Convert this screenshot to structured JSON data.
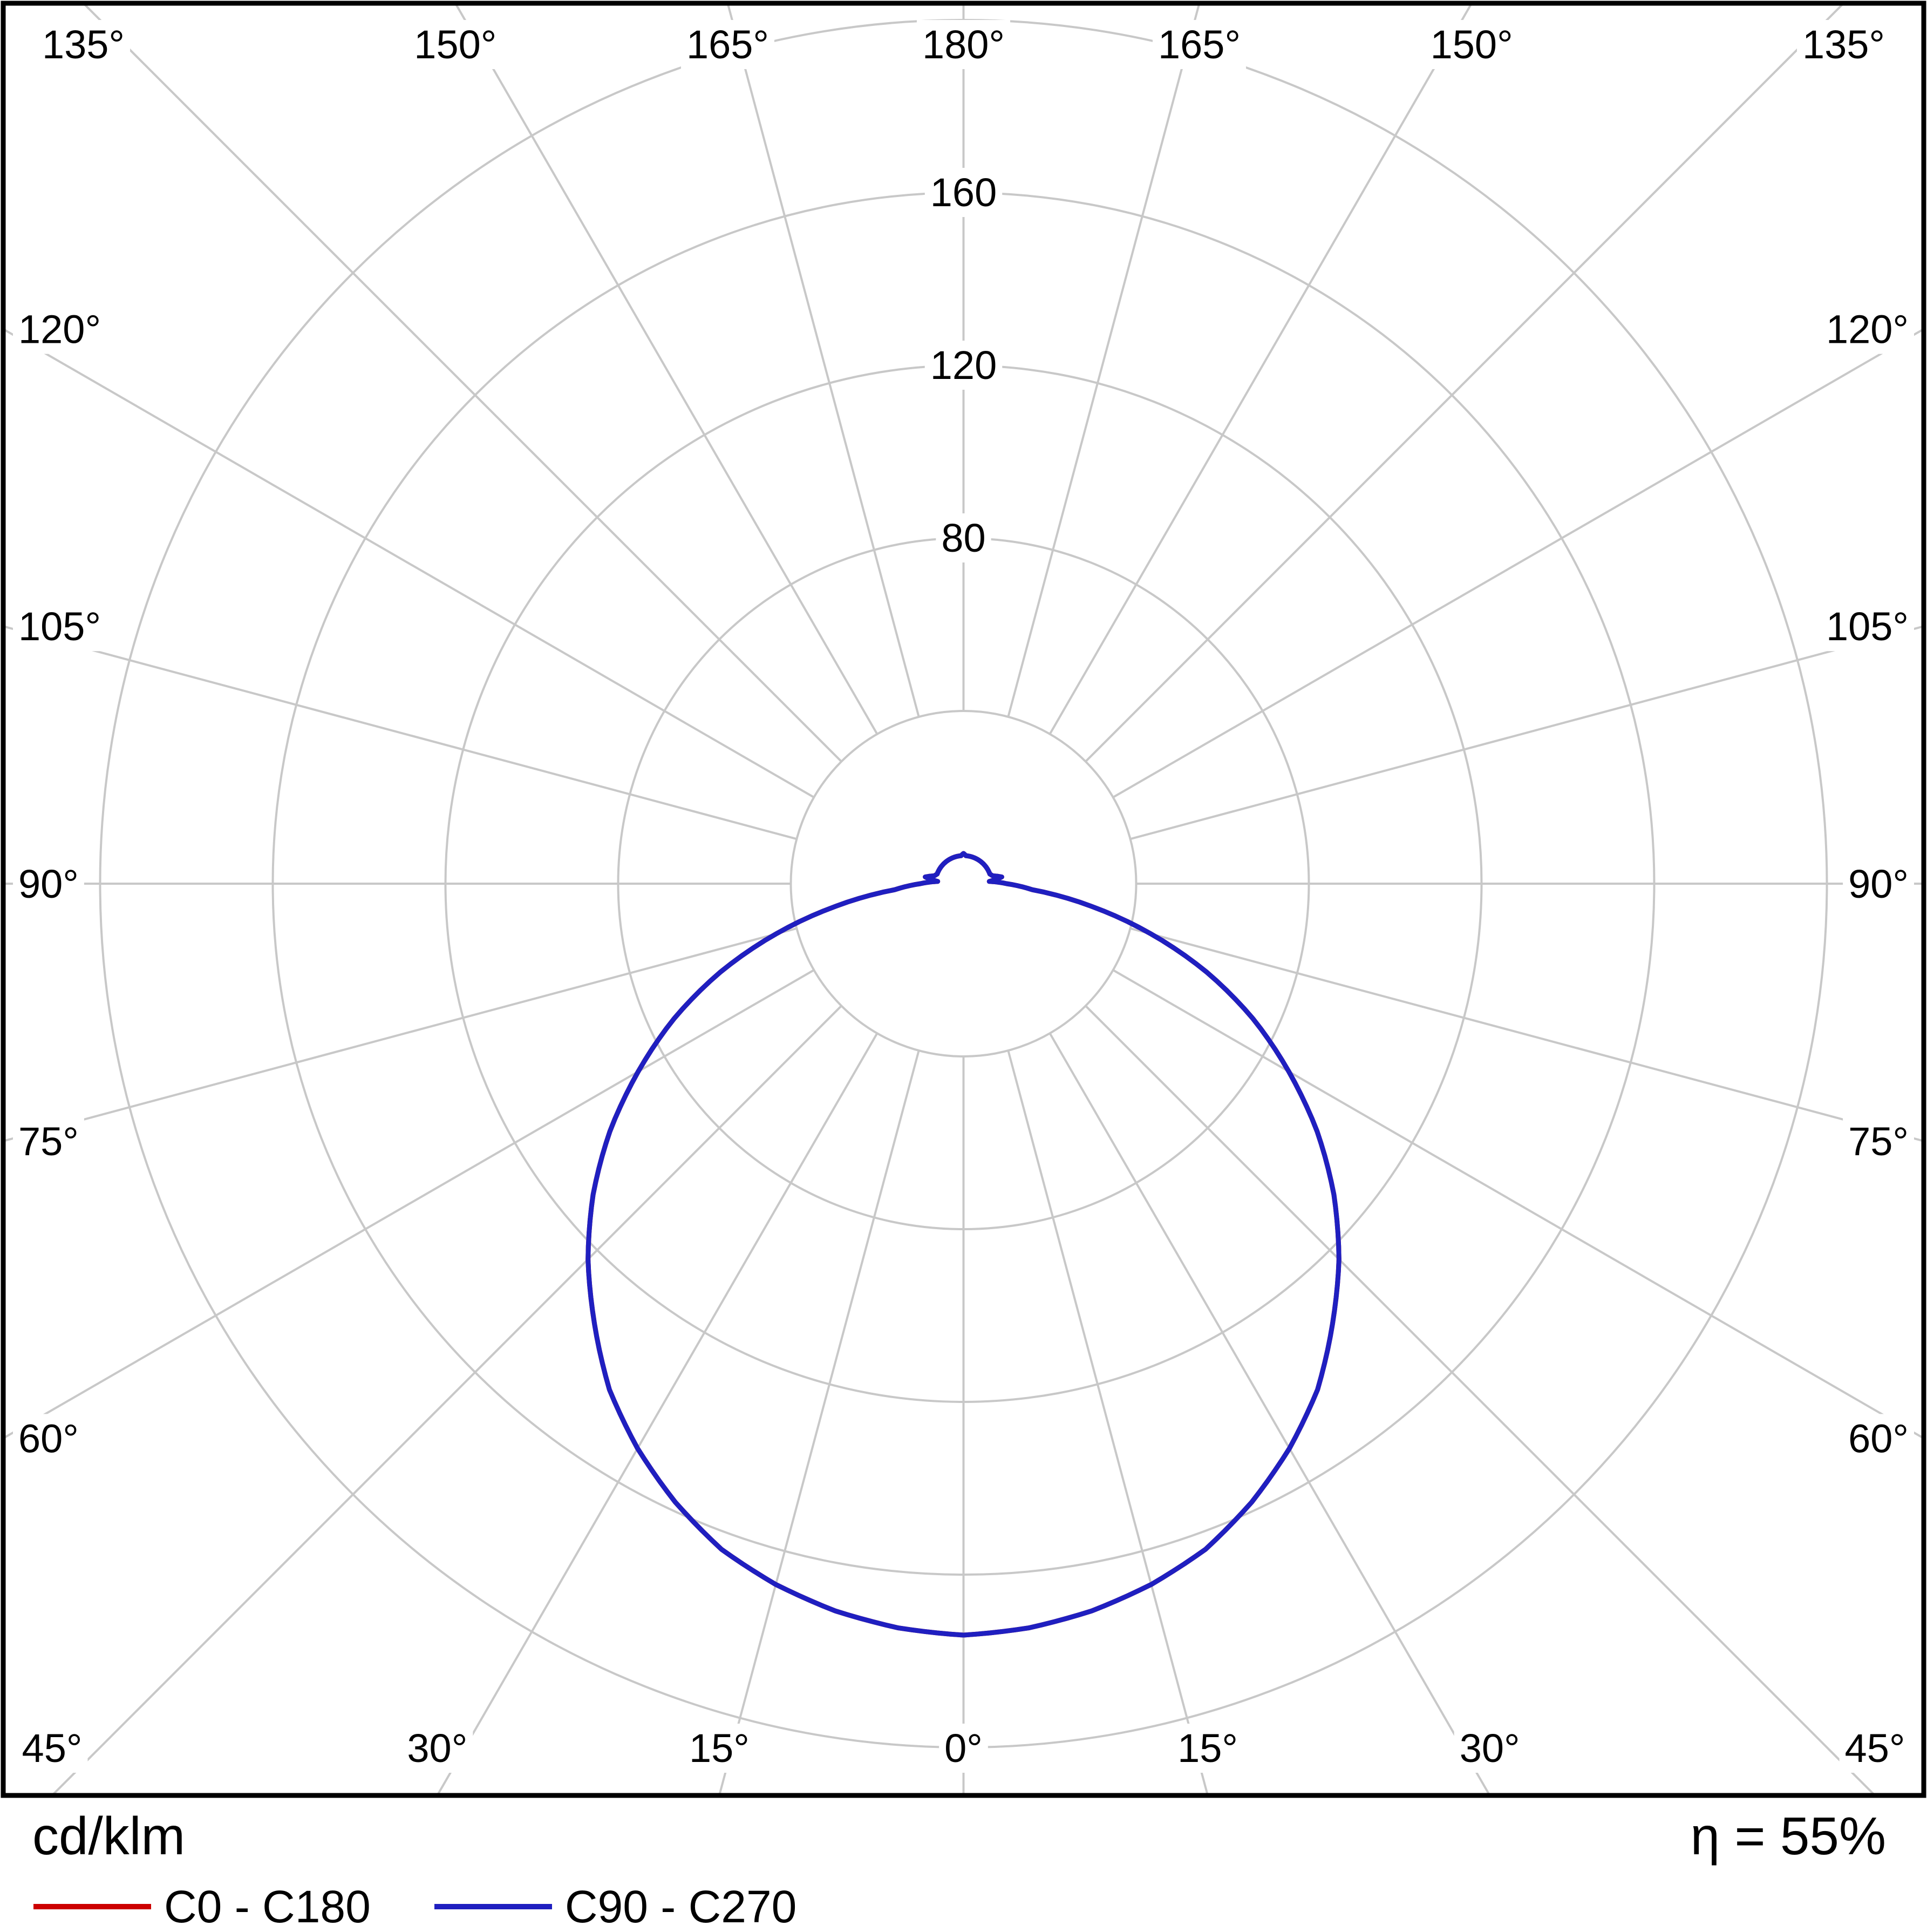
{
  "chart_data": {
    "type": "line",
    "projection": "polar",
    "title": "",
    "units_label": "cd/klm",
    "efficiency_label": "η = 55%",
    "radial_axis": {
      "unit": "cd/klm",
      "tick_step": 40,
      "max": 200,
      "labeled_ticks": [
        80,
        120,
        160
      ]
    },
    "angular_axis": {
      "step_deg": 15,
      "zero_position": "bottom",
      "mirrored": true,
      "labels": [
        "0°",
        "15°",
        "30°",
        "45°",
        "60°",
        "75°",
        "90°",
        "105°",
        "120°",
        "135°",
        "150°",
        "165°",
        "180°"
      ]
    },
    "grid": {
      "color": "#c8c8c8",
      "frame_color": "#000000",
      "background": "#ffffff"
    },
    "legend_position": "bottom",
    "series": [
      {
        "name": "C0 - C180",
        "color": "#cc0000",
        "gamma_deg": [
          0,
          5,
          10,
          15,
          20,
          25,
          30,
          35,
          40,
          45,
          50,
          55,
          60,
          65,
          70,
          75,
          80,
          85,
          90,
          95,
          100,
          105,
          110,
          115,
          120,
          125,
          130,
          135,
          140,
          145,
          150,
          155,
          160,
          165,
          170,
          175,
          180
        ],
        "values": [
          174,
          173,
          171,
          168,
          164,
          158,
          151,
          143,
          133,
          123,
          112,
          100,
          87,
          74,
          60,
          45,
          30,
          16,
          10,
          6,
          9,
          7,
          6.5,
          6.5,
          6.5,
          6.5,
          6.5,
          6.5,
          6.5,
          6.5,
          6.5,
          6.5,
          6.5,
          6.5,
          6.5,
          6.5,
          7
        ]
      },
      {
        "name": "C90 - C270",
        "color": "#1f1fc0",
        "gamma_deg": [
          0,
          5,
          10,
          15,
          20,
          25,
          30,
          35,
          40,
          45,
          50,
          55,
          60,
          65,
          70,
          75,
          80,
          85,
          90,
          95,
          100,
          105,
          110,
          115,
          120,
          125,
          130,
          135,
          140,
          145,
          150,
          155,
          160,
          165,
          170,
          175,
          180
        ],
        "values": [
          174,
          173,
          171,
          168,
          164,
          158,
          151,
          143,
          133,
          123,
          112,
          100,
          87,
          74,
          60,
          45,
          30,
          16,
          10,
          6,
          9,
          7,
          6.5,
          6.5,
          6.5,
          6.5,
          6.5,
          6.5,
          6.5,
          6.5,
          6.5,
          6.5,
          6.5,
          6.5,
          6.5,
          6.5,
          7
        ]
      }
    ]
  }
}
